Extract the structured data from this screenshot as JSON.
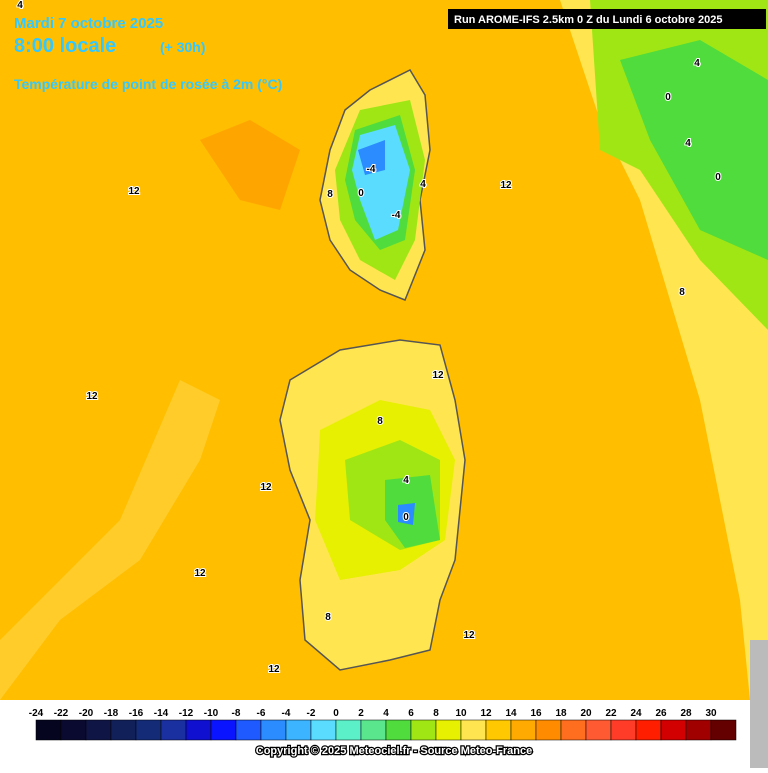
{
  "header": {
    "date": "Mardi 7 octobre 2025",
    "time": "8:00 locale",
    "lead": "(+ 30h)",
    "title": "Température de point de rosée à 2m (°C)",
    "run": "Run AROME-IFS 2.5km 0 Z du Lundi 6 octobre 2025"
  },
  "map": {
    "contour_labels": [
      "4",
      "12",
      "12",
      "12",
      "12",
      "12",
      "12",
      "12",
      "12",
      "8",
      "4",
      "0",
      "4",
      "0",
      "8",
      "0",
      "-4",
      "-4",
      "4",
      "8",
      "4",
      "0",
      "8"
    ]
  },
  "legend": {
    "ticks": [
      -24,
      -22,
      -20,
      -18,
      -16,
      -14,
      -12,
      -10,
      -8,
      -6,
      -4,
      -2,
      0,
      2,
      4,
      6,
      8,
      10,
      12,
      14,
      16,
      18,
      20,
      22,
      24,
      26,
      28,
      30
    ],
    "colors": [
      "#050520",
      "#0a0a30",
      "#0f1545",
      "#12205a",
      "#142c78",
      "#1a2fa0",
      "#1010d0",
      "#0a14ff",
      "#1e5aff",
      "#2a8cff",
      "#3cb4ff",
      "#5adcff",
      "#5cf0c8",
      "#5ae68c",
      "#50dc3c",
      "#a0e614",
      "#e6f000",
      "#ffe650",
      "#ffc800",
      "#ffaa00",
      "#ff8c00",
      "#ff6e1e",
      "#ff5a32",
      "#ff3c28",
      "#ff1e00",
      "#d20000",
      "#a00000",
      "#640000"
    ]
  },
  "footer": {
    "copyright": "Copyright © 2025 Meteociel.fr - Source Meteo-France"
  }
}
